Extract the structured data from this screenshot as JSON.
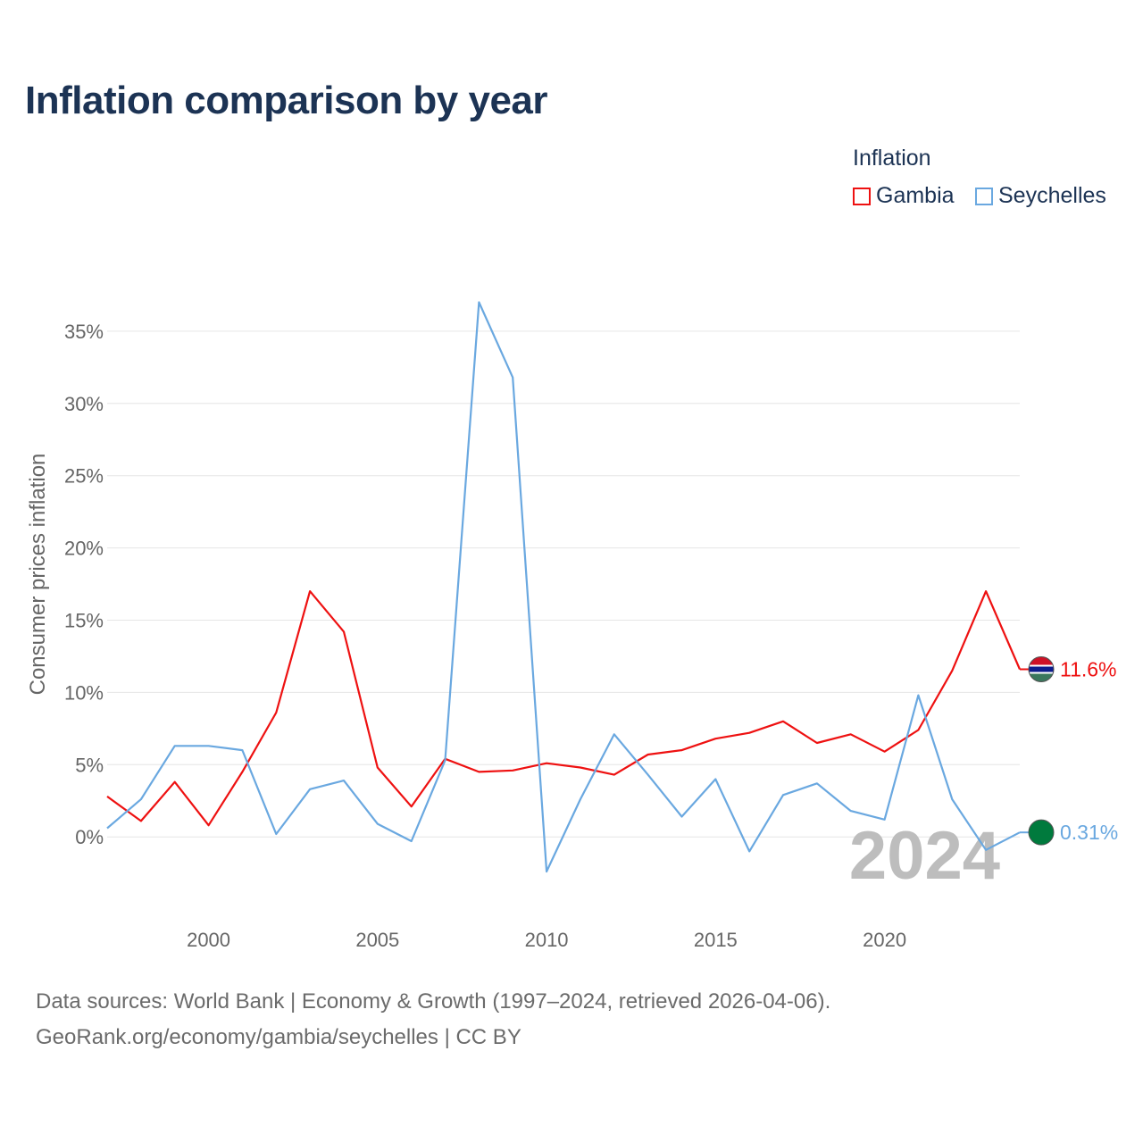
{
  "title": "Inflation comparison by year",
  "legend": {
    "title": "Inflation",
    "items": [
      {
        "label": "Gambia",
        "color": "#ee1111"
      },
      {
        "label": "Seychelles",
        "color": "#6aa8e0"
      }
    ]
  },
  "source": {
    "line1": "Data sources: World Bank | Economy & Growth (1997–2024, retrieved 2026-04-06).",
    "line2": "GeoRank.org/economy/gambia/seychelles | CC BY"
  },
  "chart_data": {
    "type": "line",
    "title": "Inflation comparison by year",
    "xlabel": "",
    "ylabel": "Consumer prices inflation",
    "year_watermark": "2024",
    "xlim": [
      1997,
      2024
    ],
    "ylim": [
      -4.5,
      40
    ],
    "x_ticks": [
      2000,
      2005,
      2010,
      2015,
      2020
    ],
    "y_ticks": [
      0,
      5,
      10,
      15,
      20,
      25,
      30,
      35
    ],
    "y_tick_labels": [
      "0%",
      "5%",
      "10%",
      "15%",
      "20%",
      "25%",
      "30%",
      "35%"
    ],
    "grid": true,
    "legend_position": "top-right",
    "x": [
      1997,
      1998,
      1999,
      2000,
      2001,
      2002,
      2003,
      2004,
      2005,
      2006,
      2007,
      2008,
      2009,
      2010,
      2011,
      2012,
      2013,
      2014,
      2015,
      2016,
      2017,
      2018,
      2019,
      2020,
      2021,
      2022,
      2023,
      2024
    ],
    "series": [
      {
        "name": "Gambia",
        "color": "#ee1111",
        "end_label": "11.6%",
        "values": [
          2.8,
          1.1,
          3.8,
          0.8,
          4.5,
          8.6,
          17.0,
          14.2,
          4.8,
          2.1,
          5.4,
          4.5,
          4.6,
          5.1,
          4.8,
          4.3,
          5.7,
          6.0,
          6.8,
          7.2,
          8.0,
          6.5,
          7.1,
          5.9,
          7.4,
          11.5,
          17.0,
          11.6
        ]
      },
      {
        "name": "Seychelles",
        "color": "#6aa8e0",
        "end_label": "0.31%",
        "values": [
          0.6,
          2.6,
          6.3,
          6.3,
          6.0,
          0.2,
          3.3,
          3.9,
          0.9,
          -0.3,
          5.3,
          37.0,
          31.8,
          -2.4,
          2.6,
          7.1,
          4.3,
          1.4,
          4.0,
          -1.0,
          2.9,
          3.7,
          1.8,
          1.2,
          9.8,
          2.6,
          -0.9,
          0.31
        ]
      }
    ]
  }
}
